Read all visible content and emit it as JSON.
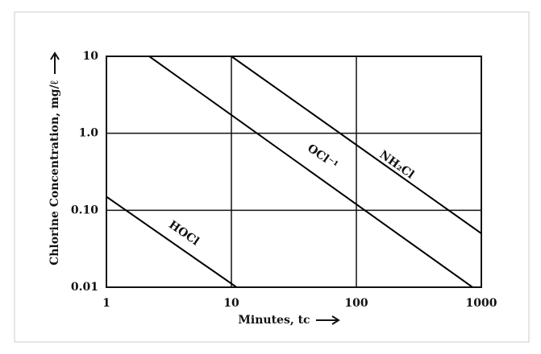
{
  "chart_data": {
    "type": "line",
    "x_label": "Minutes, tc",
    "y_label": "Chlorine Concentration, mg/ℓ",
    "xscale": "log",
    "yscale": "log",
    "grid": true,
    "xlim": [
      1,
      1000
    ],
    "xticks": [
      1,
      10,
      100,
      1000
    ],
    "ylim": [
      0.01,
      10
    ],
    "yticks": [
      0.01,
      {
        "value": 0.1,
        "label": "0.10"
      },
      {
        "value": 1,
        "label": "1.0"
      },
      10
    ],
    "series": [
      {
        "name": "HOCl",
        "color": "#000000",
        "x": [
          1,
          11
        ],
        "values": [
          0.15,
          0.01
        ]
      },
      {
        "name": "OCl⁻¹",
        "color": "#000000",
        "x": [
          2.2,
          850
        ],
        "values": [
          10,
          0.01
        ]
      },
      {
        "name": "NH₂Cl",
        "color": "#000000",
        "x": [
          10,
          1000
        ],
        "values": [
          10,
          0.05
        ]
      }
    ]
  }
}
